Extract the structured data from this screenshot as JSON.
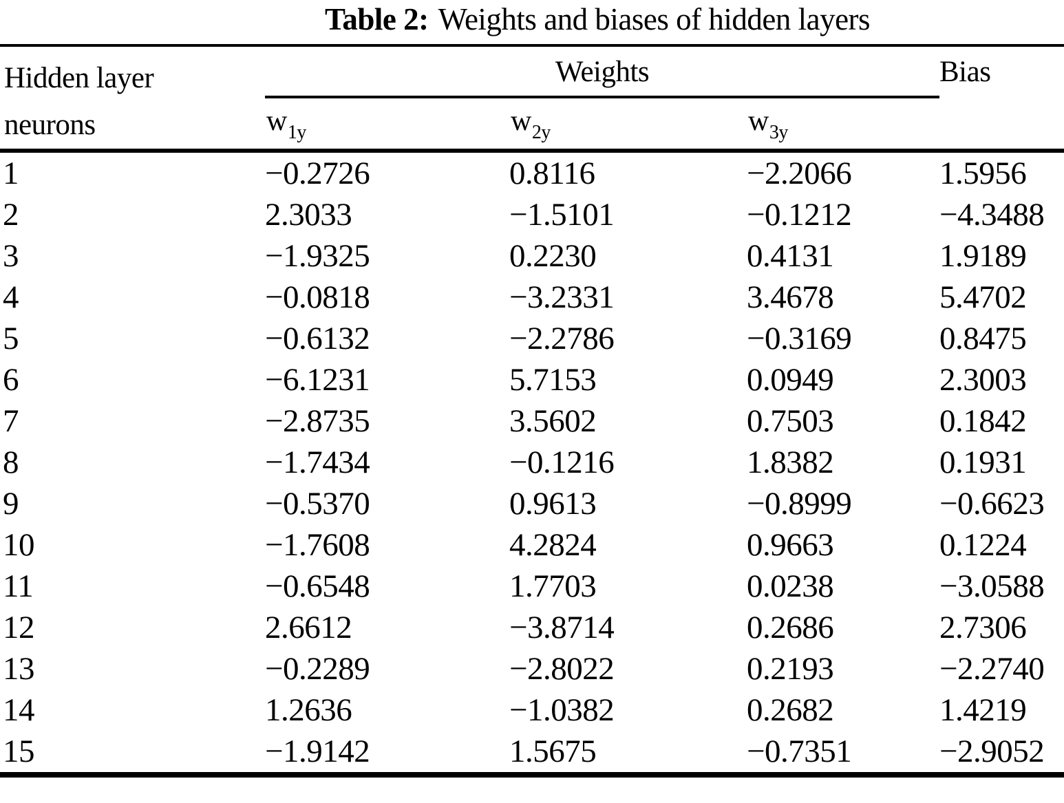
{
  "caption": {
    "label": "Table 2:",
    "text": "Weights and biases of hidden layers"
  },
  "header": {
    "neurons_line1": "Hidden layer",
    "neurons_line2": "neurons",
    "weights_group": "Weights",
    "bias": "Bias",
    "subcols": [
      {
        "base": "w",
        "sub": "1y"
      },
      {
        "base": "w",
        "sub": "2y"
      },
      {
        "base": "w",
        "sub": "3y"
      }
    ]
  },
  "rows": [
    [
      "1",
      "−0.2726",
      "0.8116",
      "−2.2066",
      "1.5956"
    ],
    [
      "2",
      "2.3033",
      "−1.5101",
      "−0.1212",
      "−4.3488"
    ],
    [
      "3",
      "−1.9325",
      "0.2230",
      "0.4131",
      "1.9189"
    ],
    [
      "4",
      "−0.0818",
      "−3.2331",
      "3.4678",
      "5.4702"
    ],
    [
      "5",
      "−0.6132",
      "−2.2786",
      "−0.3169",
      "0.8475"
    ],
    [
      "6",
      "−6.1231",
      "5.7153",
      "0.0949",
      "2.3003"
    ],
    [
      "7",
      "−2.8735",
      "3.5602",
      "0.7503",
      "0.1842"
    ],
    [
      "8",
      "−1.7434",
      "−0.1216",
      "1.8382",
      "0.1931"
    ],
    [
      "9",
      "−0.5370",
      "0.9613",
      "−0.8999",
      "−0.6623"
    ],
    [
      "10",
      "−1.7608",
      "4.2824",
      "0.9663",
      "0.1224"
    ],
    [
      "11",
      "−0.6548",
      "1.7703",
      "0.0238",
      "−3.0588"
    ],
    [
      "12",
      "2.6612",
      "−3.8714",
      "0.2686",
      "2.7306"
    ],
    [
      "13",
      "−0.2289",
      "−2.8022",
      "0.2193",
      "−2.2740"
    ],
    [
      "14",
      "1.2636",
      "−1.0382",
      "0.2682",
      "1.4219"
    ],
    [
      "15",
      "−1.9142",
      "1.5675",
      "−0.7351",
      "−2.9052"
    ]
  ]
}
